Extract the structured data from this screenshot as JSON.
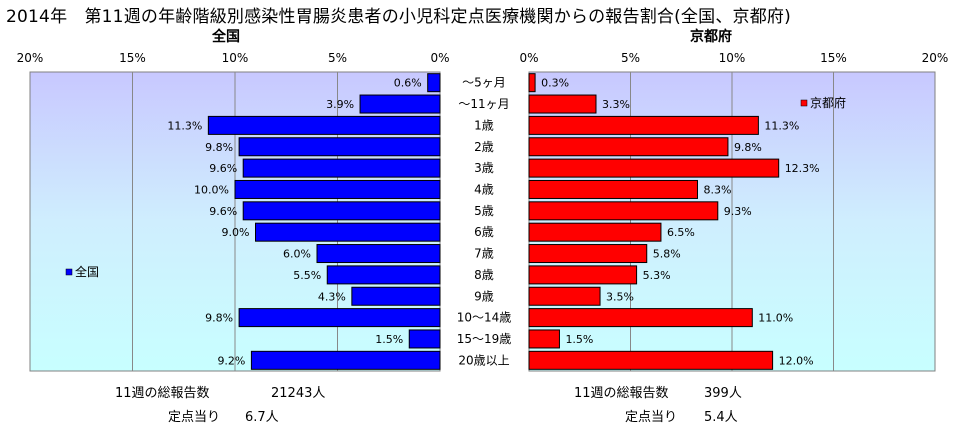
{
  "title": "2014年　第11週の年齢階級別感染性胃腸炎患者の小児科定点医療機関からの報告割合(全国、京都府)",
  "chart_data": [
    {
      "type": "bar",
      "orientation": "horizontal",
      "direction": "right-to-left",
      "title": "全国",
      "xlim": [
        0,
        20
      ],
      "ticks": [
        "20%",
        "15%",
        "10%",
        "5%",
        "0%"
      ],
      "categories": [
        "～5ヶ月",
        "～11ヶ月",
        "1歳",
        "2歳",
        "3歳",
        "4歳",
        "5歳",
        "6歳",
        "7歳",
        "8歳",
        "9歳",
        "10～14歳",
        "15～19歳",
        "20歳以上"
      ],
      "series": [
        {
          "name": "全国",
          "values": [
            0.6,
            3.9,
            11.3,
            9.8,
            9.6,
            10.0,
            9.6,
            9.0,
            6.0,
            5.5,
            4.3,
            9.8,
            1.5,
            9.2
          ],
          "labels": [
            "0.6%",
            "3.9%",
            "11.3%",
            "9.8%",
            "9.6%",
            "10.0%",
            "9.6%",
            "9.0%",
            "6.0%",
            "5.5%",
            "4.3%",
            "9.8%",
            "1.5%",
            "9.2%"
          ],
          "color": "#0000ff"
        }
      ],
      "legend": "left",
      "grid": true,
      "background_gradient": [
        "#c8c8ff",
        "#c8ffff"
      ]
    },
    {
      "type": "bar",
      "orientation": "horizontal",
      "direction": "left-to-right",
      "title": "京都府",
      "xlim": [
        0,
        20
      ],
      "ticks": [
        "0%",
        "5%",
        "10%",
        "15%",
        "20%"
      ],
      "categories": [
        "～5ヶ月",
        "～11ヶ月",
        "1歳",
        "2歳",
        "3歳",
        "4歳",
        "5歳",
        "6歳",
        "7歳",
        "8歳",
        "9歳",
        "10～14歳",
        "15～19歳",
        "20歳以上"
      ],
      "series": [
        {
          "name": "京都府",
          "values": [
            0.3,
            3.3,
            11.3,
            9.8,
            12.3,
            8.3,
            9.3,
            6.5,
            5.8,
            5.3,
            3.5,
            11.0,
            1.5,
            12.0
          ],
          "labels": [
            "0.3%",
            "3.3%",
            "11.3%",
            "9.8%",
            "12.3%",
            "8.3%",
            "9.3%",
            "6.5%",
            "5.8%",
            "5.3%",
            "3.5%",
            "11.0%",
            "1.5%",
            "12.0%"
          ],
          "color": "#ff0000"
        }
      ],
      "legend": "top-right",
      "grid": true,
      "background_gradient": [
        "#c8c8ff",
        "#c8ffff"
      ]
    }
  ],
  "footer": {
    "national": {
      "total_label": "11週の総報告数",
      "total_value": "21243人",
      "per_label": "定点当り",
      "per_value": "6.7人"
    },
    "kyoto": {
      "total_label": "11週の総報告数",
      "total_value": "399人",
      "per_label": "定点当り",
      "per_value": "5.4人"
    }
  }
}
